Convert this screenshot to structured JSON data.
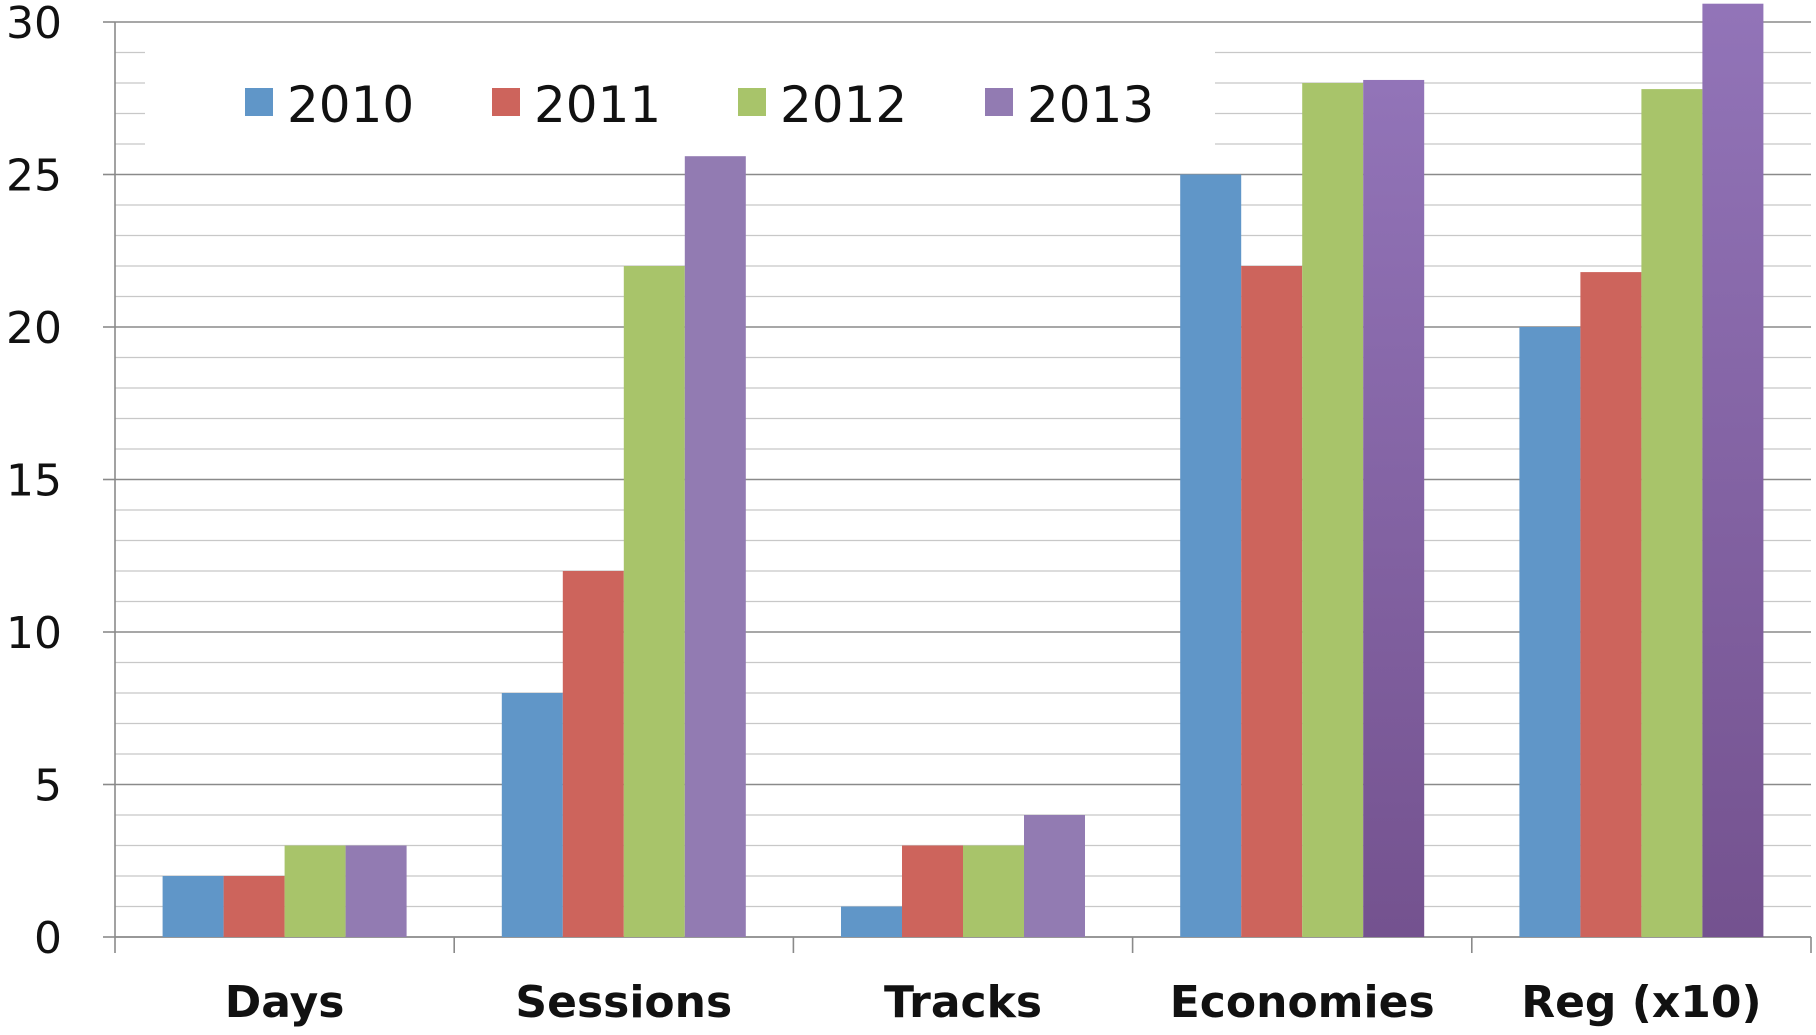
{
  "chart_data": {
    "type": "bar",
    "title": "",
    "xlabel": "",
    "ylabel": "",
    "categories": [
      "Days",
      "Sessions",
      "Tracks",
      "Economies",
      "Reg (x10)"
    ],
    "series": [
      {
        "name": "2010",
        "color": "#6096c8",
        "values": [
          2,
          8,
          1,
          25,
          20
        ]
      },
      {
        "name": "2011",
        "color": "#cd645c",
        "values": [
          2,
          12,
          3,
          22,
          21.8
        ]
      },
      {
        "name": "2012",
        "color": "#a8c46a",
        "values": [
          3,
          22,
          3,
          28,
          27.8
        ]
      },
      {
        "name": "2013",
        "color": "#927bb2",
        "values": [
          3,
          25.6,
          4,
          28.1,
          30.6
        ]
      }
    ],
    "ylim": [
      0,
      30
    ],
    "yticks": [
      0,
      5,
      10,
      15,
      20,
      25,
      30
    ],
    "minor_grid_step": 1,
    "grid": true,
    "legend_position": "top-left"
  }
}
